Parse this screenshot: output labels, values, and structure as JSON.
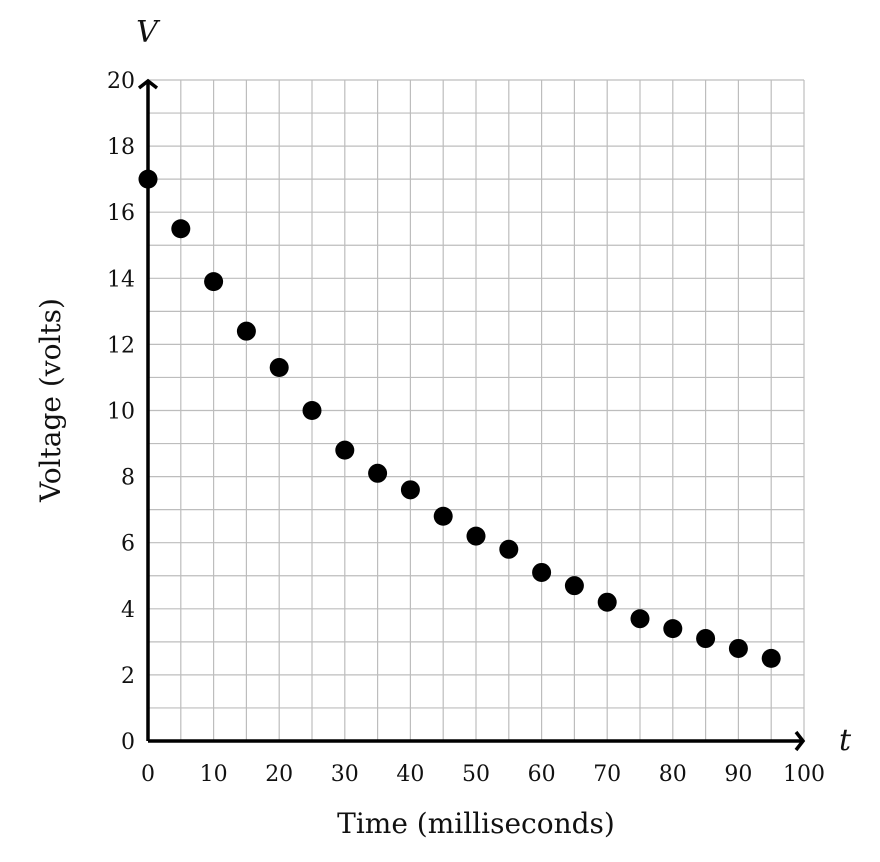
{
  "chart_data": {
    "type": "scatter",
    "xlabel": "Time (milliseconds)",
    "ylabel": "Voltage (volts)",
    "x_axis_variable": "t",
    "y_axis_variable": "V",
    "xlim": [
      0,
      100
    ],
    "ylim": [
      0,
      20
    ],
    "x_ticks": [
      0,
      10,
      20,
      30,
      40,
      50,
      60,
      70,
      80,
      90,
      100
    ],
    "y_ticks": [
      0,
      2,
      4,
      6,
      8,
      10,
      12,
      14,
      16,
      18,
      20
    ],
    "x_grid_step": 5,
    "y_grid_step": 1,
    "grid": true,
    "points": [
      {
        "x": 0,
        "y": 17
      },
      {
        "x": 5,
        "y": 15.5
      },
      {
        "x": 10,
        "y": 13.9
      },
      {
        "x": 15,
        "y": 12.4
      },
      {
        "x": 20,
        "y": 11.3
      },
      {
        "x": 25,
        "y": 10
      },
      {
        "x": 30,
        "y": 8.8
      },
      {
        "x": 35,
        "y": 8.1
      },
      {
        "x": 40,
        "y": 7.6
      },
      {
        "x": 45,
        "y": 6.8
      },
      {
        "x": 50,
        "y": 6.2
      },
      {
        "x": 55,
        "y": 5.8
      },
      {
        "x": 60,
        "y": 5.1
      },
      {
        "x": 65,
        "y": 4.7
      },
      {
        "x": 70,
        "y": 4.2
      },
      {
        "x": 75,
        "y": 3.7
      },
      {
        "x": 80,
        "y": 3.4
      },
      {
        "x": 85,
        "y": 3.1
      },
      {
        "x": 90,
        "y": 2.8
      },
      {
        "x": 95,
        "y": 2.5
      }
    ]
  }
}
